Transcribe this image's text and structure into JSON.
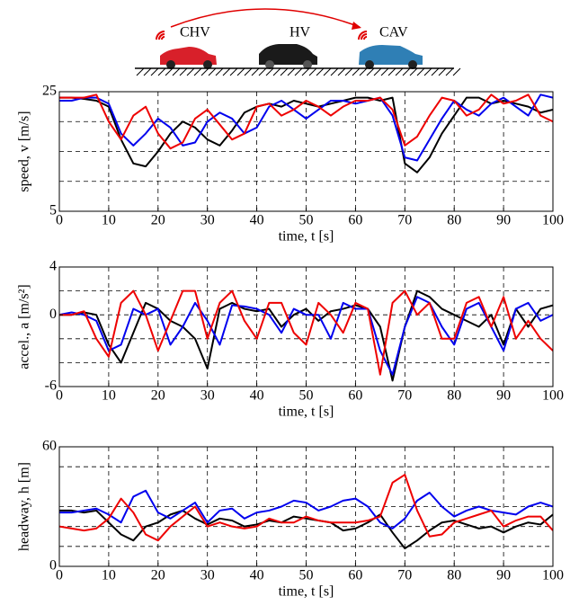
{
  "header": {
    "labels": [
      "CHV",
      "HV",
      "CAV"
    ]
  },
  "chart_data": [
    {
      "type": "line",
      "ylabel": "speed, v [m/s]",
      "xlabel": "time, t [s]",
      "x": [
        0,
        2.5,
        5,
        7.5,
        10,
        12.5,
        15,
        17.5,
        20,
        22.5,
        25,
        27.5,
        30,
        32.5,
        35,
        37.5,
        40,
        42.5,
        45,
        47.5,
        50,
        52.5,
        55,
        57.5,
        60,
        62.5,
        65,
        67.5,
        70,
        72.5,
        75,
        77.5,
        80,
        82.5,
        85,
        87.5,
        90,
        92.5,
        95,
        97.5,
        100
      ],
      "xlim": [
        0,
        100
      ],
      "xticks": [
        0,
        10,
        20,
        30,
        40,
        50,
        60,
        70,
        80,
        90,
        100
      ],
      "ylim": [
        5,
        25
      ],
      "yticks": [
        5,
        25
      ],
      "ygrid": [
        10,
        15,
        20
      ],
      "grid": true,
      "series": [
        {
          "color": "#000000",
          "values": [
            24,
            24,
            23.8,
            23.5,
            22.5,
            17,
            13,
            12.5,
            15,
            18,
            20,
            19,
            17,
            16,
            18.5,
            21.5,
            22.5,
            23,
            22.5,
            23.5,
            23,
            22.5,
            23,
            23.5,
            24,
            24,
            23.5,
            24,
            13,
            11.5,
            14,
            18,
            21,
            24,
            24,
            23,
            23.5,
            23,
            22.5,
            21.5,
            22
          ]
        },
        {
          "color": "#0000ee",
          "values": [
            23.5,
            23.5,
            24,
            24,
            23,
            18,
            16,
            18,
            20.5,
            19,
            16,
            16.5,
            20,
            21.5,
            20.5,
            18,
            19,
            22.5,
            23.5,
            22,
            20.5,
            22,
            23.5,
            23.5,
            23,
            23.5,
            24,
            21,
            14,
            13.5,
            17,
            20.5,
            23.5,
            22,
            21,
            23,
            24,
            22.5,
            21,
            24.5,
            24
          ]
        },
        {
          "color": "#ee0000",
          "values": [
            24,
            24,
            24,
            24.5,
            20,
            17,
            21,
            22.5,
            18,
            15.5,
            16.5,
            20.5,
            22,
            19.5,
            17,
            18,
            22.5,
            23,
            21,
            22,
            23.5,
            22.5,
            21,
            22.5,
            23.5,
            23.5,
            24,
            22,
            16,
            17.5,
            21,
            24,
            23.5,
            21,
            22,
            24.5,
            23,
            23.5,
            24.5,
            21,
            20
          ]
        }
      ]
    },
    {
      "type": "line",
      "ylabel": "accel., a [m/s²]",
      "xlabel": "time, t [s]",
      "x": [
        0,
        2.5,
        5,
        7.5,
        10,
        12.5,
        15,
        17.5,
        20,
        22.5,
        25,
        27.5,
        30,
        32.5,
        35,
        37.5,
        40,
        42.5,
        45,
        47.5,
        50,
        52.5,
        55,
        57.5,
        60,
        62.5,
        65,
        67.5,
        70,
        72.5,
        75,
        77.5,
        80,
        82.5,
        85,
        87.5,
        90,
        92.5,
        95,
        97.5,
        100
      ],
      "xlim": [
        0,
        100
      ],
      "xticks": [
        0,
        10,
        20,
        30,
        40,
        50,
        60,
        70,
        80,
        90,
        100
      ],
      "ylim": [
        -6,
        4
      ],
      "yticks": [
        -6,
        0,
        4
      ],
      "ygrid": [
        -4,
        -2,
        0,
        2
      ],
      "grid": true,
      "series": [
        {
          "color": "#000000",
          "values": [
            0,
            0,
            0.2,
            0,
            -2.5,
            -4,
            -1.5,
            1,
            0.5,
            -0.5,
            -1,
            -2,
            -4.5,
            0.5,
            1,
            0.5,
            0.3,
            0.5,
            -1,
            0,
            0.5,
            -0.5,
            0.3,
            0.5,
            0.8,
            0.5,
            -1,
            -5.5,
            -1,
            2,
            1.5,
            0.5,
            0,
            -0.5,
            -1,
            0,
            -2.5,
            0.5,
            -1,
            0.5,
            0.8
          ]
        },
        {
          "color": "#0000ee",
          "values": [
            0,
            0.2,
            0,
            -0.5,
            -3,
            -2.5,
            0.5,
            0,
            0.5,
            -2.5,
            -1,
            1,
            -0.5,
            -2.5,
            0.8,
            0.7,
            0.5,
            0,
            -1.5,
            0.5,
            0,
            0,
            -2,
            1,
            0.5,
            0.5,
            -3,
            -5,
            -1,
            1.5,
            1,
            -1,
            -2.5,
            0.5,
            1,
            -1,
            -3,
            0.5,
            1,
            -0.5,
            0
          ]
        },
        {
          "color": "#ee0000",
          "values": [
            0,
            0,
            0.3,
            -2,
            -3.5,
            1,
            2,
            0,
            -3,
            -0.5,
            2,
            2,
            -2,
            1,
            2,
            -0.5,
            -2,
            1,
            1,
            -1.5,
            -2.5,
            1,
            0,
            -1.5,
            1,
            0.5,
            -5,
            1,
            2,
            0,
            1,
            -2,
            -2,
            1,
            1.5,
            -1,
            1.5,
            -2,
            -0.5,
            -2,
            -3
          ]
        }
      ]
    },
    {
      "type": "line",
      "ylabel": "headway, h [m]",
      "xlabel": "time, t [s]",
      "x": [
        0,
        2.5,
        5,
        7.5,
        10,
        12.5,
        15,
        17.5,
        20,
        22.5,
        25,
        27.5,
        30,
        32.5,
        35,
        37.5,
        40,
        42.5,
        45,
        47.5,
        50,
        52.5,
        55,
        57.5,
        60,
        62.5,
        65,
        67.5,
        70,
        72.5,
        75,
        77.5,
        80,
        82.5,
        85,
        87.5,
        90,
        92.5,
        95,
        97.5,
        100
      ],
      "xlim": [
        0,
        100
      ],
      "xticks": [
        0,
        10,
        20,
        30,
        40,
        50,
        60,
        70,
        80,
        90,
        100
      ],
      "ylim": [
        0,
        60
      ],
      "yticks": [
        0,
        60
      ],
      "ygrid": [
        10,
        20,
        30,
        50
      ],
      "grid": true,
      "series": [
        {
          "color": "#000000",
          "values": [
            28,
            28,
            27,
            28,
            22,
            16,
            13,
            20,
            22,
            26,
            28,
            24,
            21,
            24,
            23,
            20,
            21,
            23,
            22,
            25,
            24,
            23,
            22,
            18,
            19,
            22,
            26,
            17,
            9,
            13,
            18,
            22,
            23,
            21,
            19,
            20,
            17,
            20,
            22,
            21,
            26
          ]
        },
        {
          "color": "#0000ee",
          "values": [
            27,
            27,
            28,
            29,
            26,
            22,
            35,
            38,
            27,
            24,
            28,
            32,
            22,
            28,
            29,
            24,
            27,
            28,
            30,
            33,
            32,
            28,
            30,
            33,
            34,
            30,
            22,
            19,
            24,
            33,
            37,
            30,
            25,
            28,
            30,
            28,
            27,
            26,
            30,
            32,
            30
          ]
        },
        {
          "color": "#ee0000",
          "values": [
            20,
            19,
            18,
            19,
            24,
            34,
            27,
            16,
            13,
            20,
            25,
            30,
            20,
            22,
            20,
            19,
            20,
            24,
            22,
            22,
            25,
            23,
            22,
            22,
            22,
            23,
            25,
            42,
            46,
            28,
            15,
            16,
            22,
            24,
            26,
            28,
            20,
            23,
            25,
            25,
            18
          ]
        }
      ]
    }
  ]
}
